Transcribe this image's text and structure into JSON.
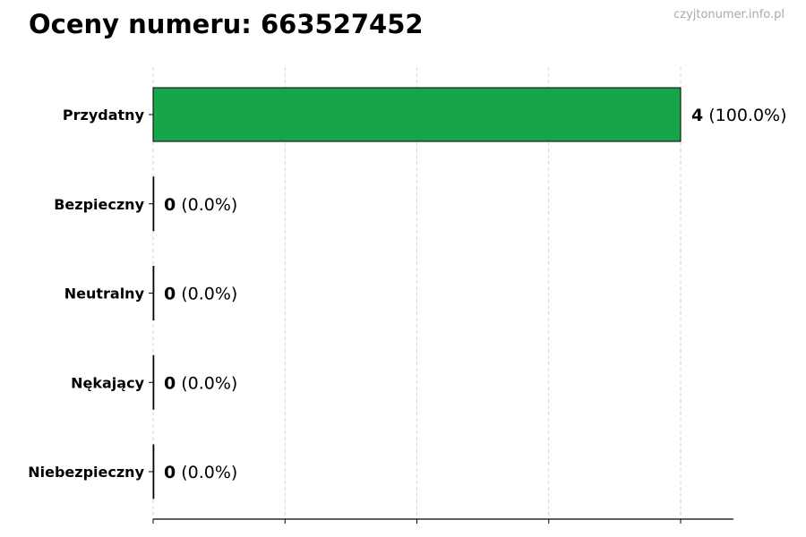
{
  "watermark": "czyjtonumer.info.pl",
  "chart_data": {
    "type": "bar",
    "orientation": "horizontal",
    "title": "Oceny numeru: 663527452",
    "categories": [
      "Przydatny",
      "Bezpieczny",
      "Neutralny",
      "Nękający",
      "Niebezpieczny"
    ],
    "values": [
      4,
      0,
      0,
      0,
      0
    ],
    "percent_labels": [
      "(100.0%)",
      "(0.0%)",
      "(0.0%)",
      "(0.0%)",
      "(0.0%)"
    ],
    "colors": [
      "#18a54a",
      "#18a54a",
      "#18a54a",
      "#18a54a",
      "#18a54a"
    ],
    "xlim": [
      0,
      4.4
    ],
    "xticks": [
      0,
      1,
      2,
      3,
      4
    ],
    "xtick_labels_shown": false,
    "grid": "x-dashed",
    "xlabel": "",
    "ylabel": ""
  }
}
